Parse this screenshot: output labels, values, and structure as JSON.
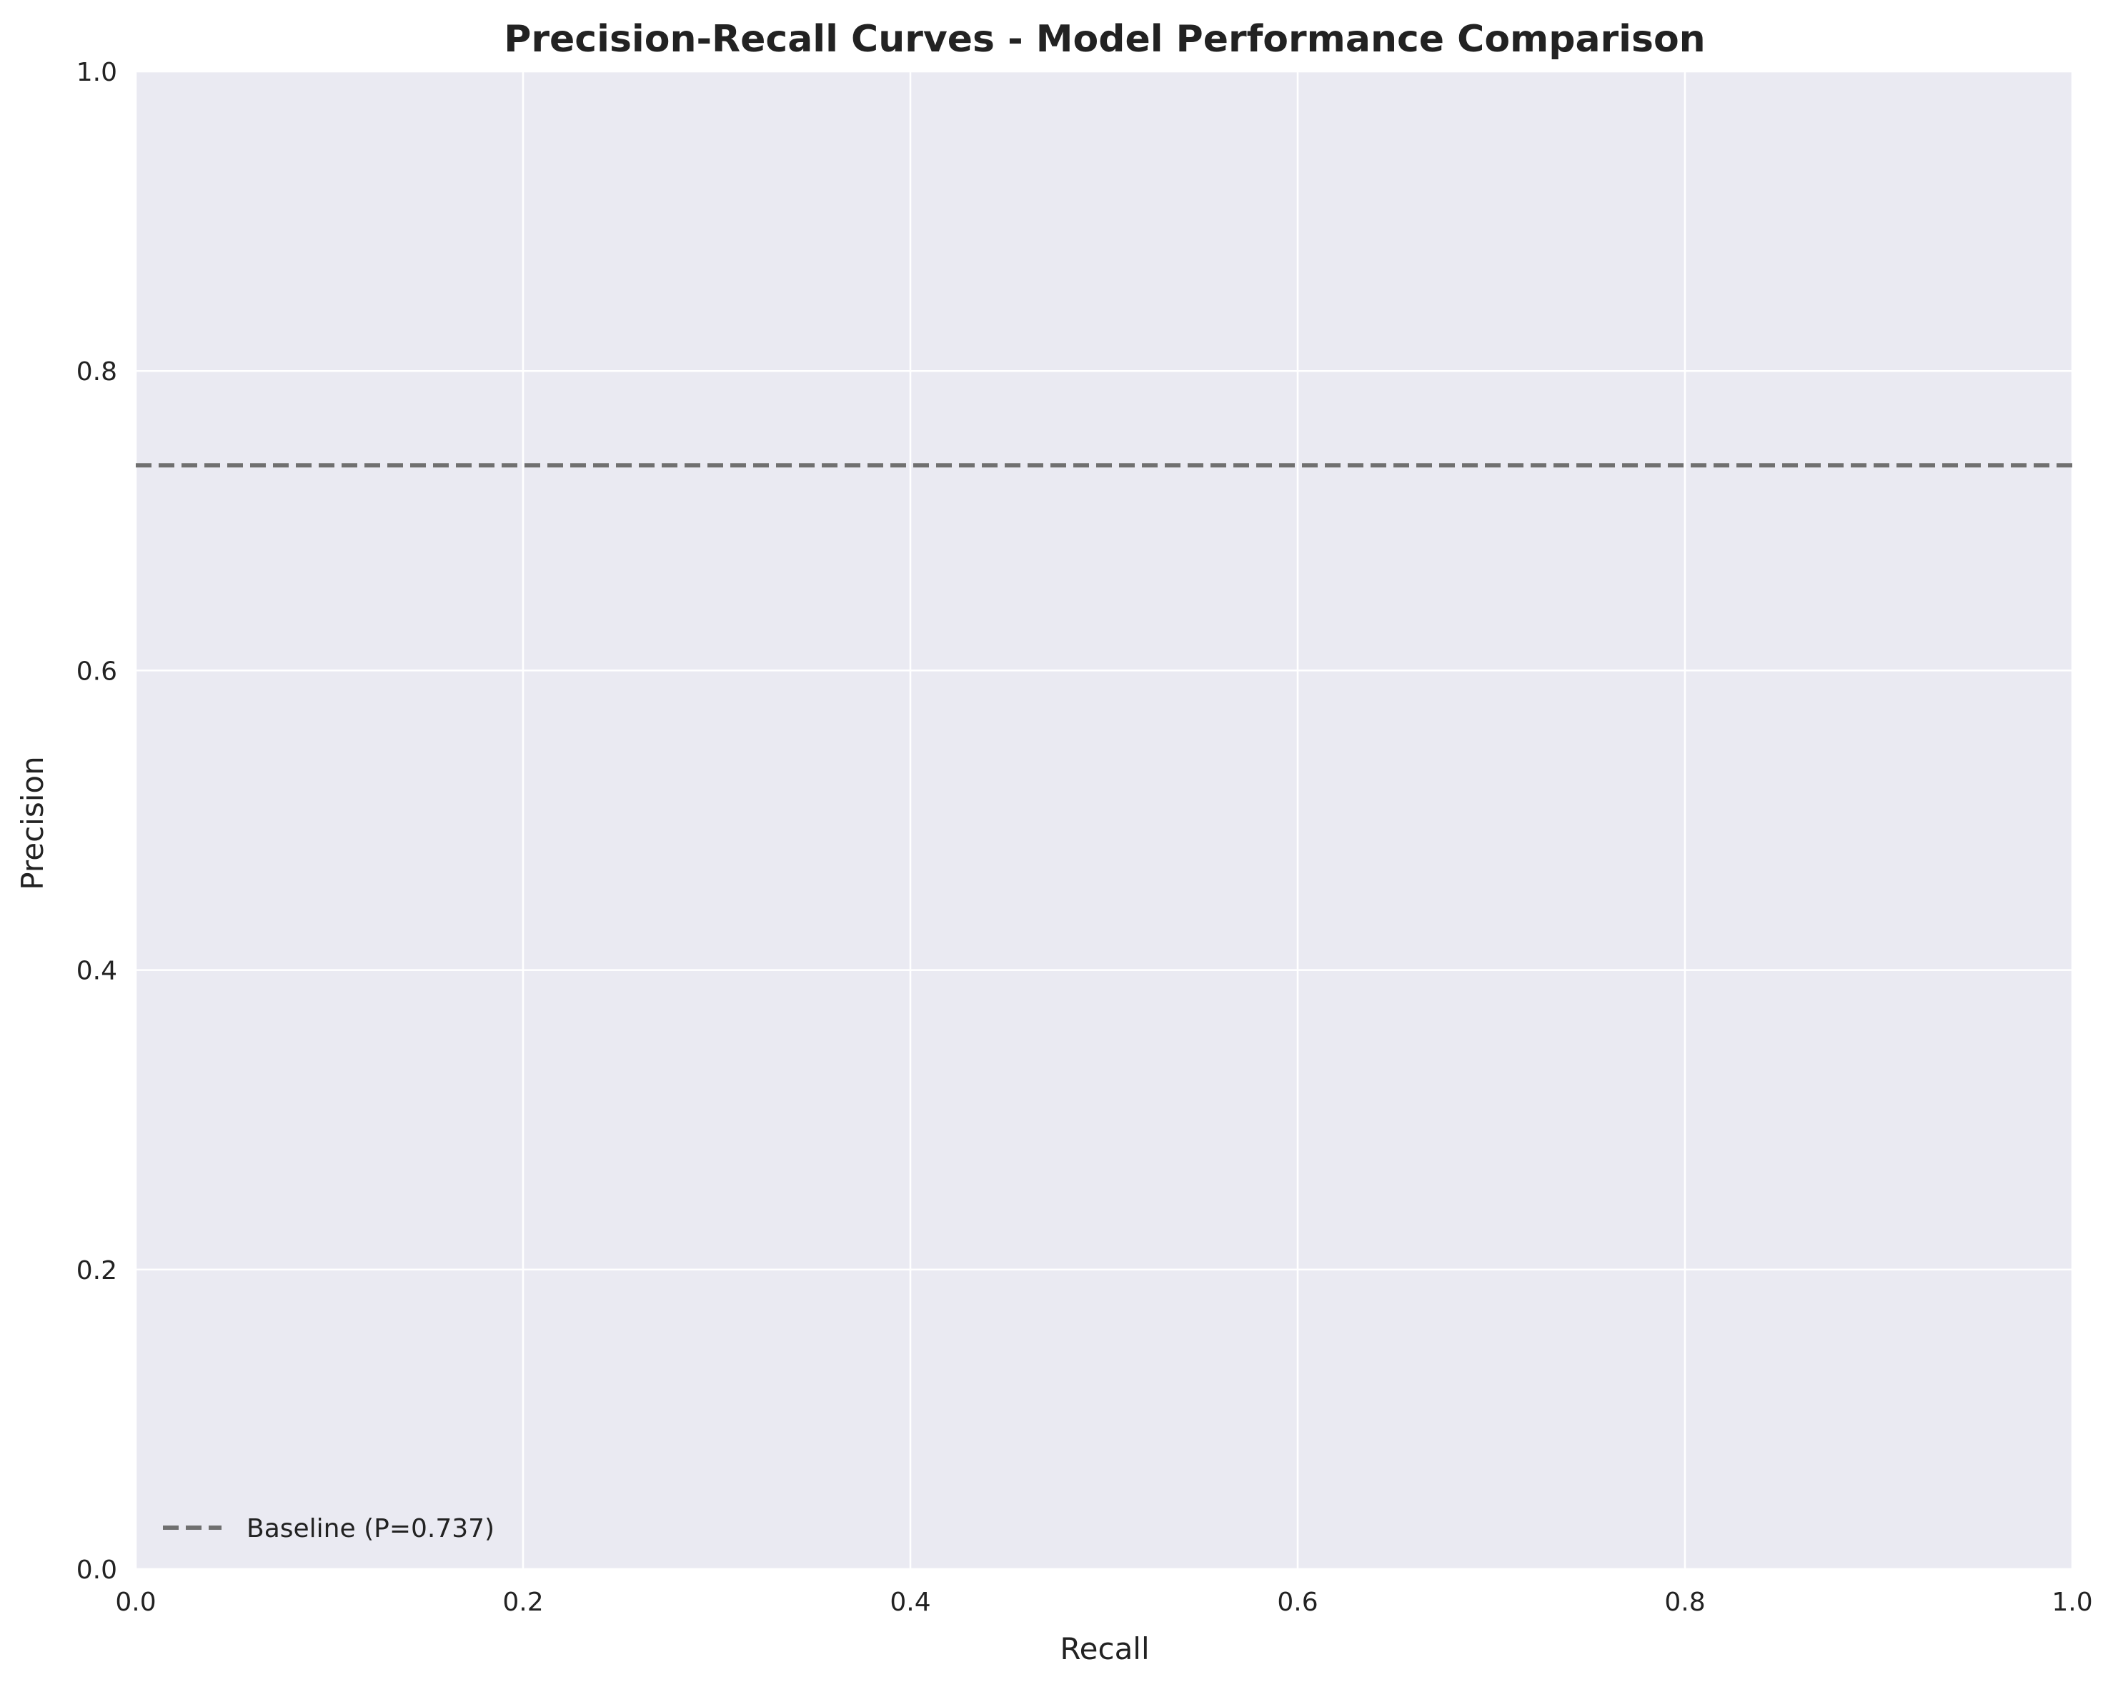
{
  "chart_data": {
    "type": "line",
    "title": "Precision-Recall Curves - Model Performance Comparison",
    "xlabel": "Recall",
    "ylabel": "Precision",
    "xlim": [
      0.0,
      1.0
    ],
    "ylim": [
      0.0,
      1.0
    ],
    "x_ticks": [
      0.0,
      0.2,
      0.4,
      0.6,
      0.8,
      1.0
    ],
    "y_ticks": [
      0.0,
      0.2,
      0.4,
      0.6,
      0.8,
      1.0
    ],
    "x_tick_labels": [
      "0.0",
      "0.2",
      "0.4",
      "0.6",
      "0.8",
      "1.0"
    ],
    "y_tick_labels": [
      "0.0",
      "0.2",
      "0.4",
      "0.6",
      "0.8",
      "1.0"
    ],
    "grid": true,
    "background_color": "#eaeaf2",
    "grid_color": "#ffffff",
    "legend_position": "lower-left",
    "series": [
      {
        "name": "Baseline (P=0.737)",
        "style": "dashed",
        "color": "#707070",
        "x": [
          0.0,
          1.0
        ],
        "y": [
          0.737,
          0.737
        ]
      }
    ]
  }
}
